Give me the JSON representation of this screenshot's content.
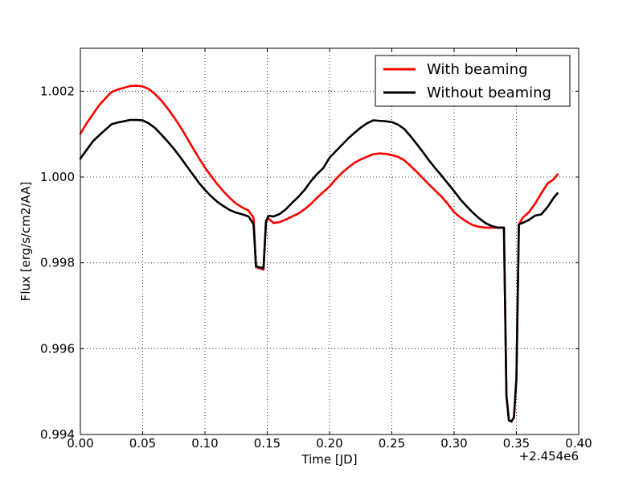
{
  "chart_data": {
    "type": "line",
    "xlabel": "Time [JD]",
    "ylabel": "Flux [erg/s/cm2/AA]",
    "x_offset_label": "+2.454e6",
    "xlim": [
      0.0,
      0.4
    ],
    "ylim": [
      0.994,
      1.003
    ],
    "xticks": [
      0.0,
      0.05,
      0.1,
      0.15,
      0.2,
      0.25,
      0.3,
      0.35,
      0.4
    ],
    "xtick_labels": [
      "0.00",
      "0.05",
      "0.10",
      "0.15",
      "0.20",
      "0.25",
      "0.30",
      "0.35",
      "0.40"
    ],
    "yticks": [
      0.994,
      0.996,
      0.998,
      1.0,
      1.002
    ],
    "ytick_labels": [
      "0.994",
      "0.996",
      "0.998",
      "1.000",
      "1.002"
    ],
    "grid": true,
    "legend_position": "top-right",
    "series": [
      {
        "name": "With beaming",
        "color": "#ff0000",
        "x": [
          0.0,
          0.005,
          0.01,
          0.015,
          0.02,
          0.025,
          0.03,
          0.035,
          0.04,
          0.045,
          0.05,
          0.055,
          0.06,
          0.065,
          0.07,
          0.075,
          0.08,
          0.085,
          0.09,
          0.095,
          0.1,
          0.105,
          0.11,
          0.115,
          0.12,
          0.125,
          0.13,
          0.135,
          0.139,
          0.141,
          0.143,
          0.147,
          0.149,
          0.151,
          0.155,
          0.16,
          0.165,
          0.17,
          0.175,
          0.18,
          0.185,
          0.19,
          0.195,
          0.2,
          0.205,
          0.21,
          0.215,
          0.22,
          0.225,
          0.23,
          0.235,
          0.24,
          0.245,
          0.25,
          0.255,
          0.26,
          0.265,
          0.27,
          0.275,
          0.28,
          0.285,
          0.29,
          0.295,
          0.3,
          0.305,
          0.31,
          0.315,
          0.32,
          0.325,
          0.33,
          0.335,
          0.34,
          0.342,
          0.344,
          0.346,
          0.348,
          0.35,
          0.352,
          0.355,
          0.36,
          0.365,
          0.37,
          0.375,
          0.38,
          0.383
        ],
        "y": [
          1.00101,
          1.00125,
          1.00146,
          1.00167,
          1.00183,
          1.00198,
          1.00204,
          1.00208,
          1.00212,
          1.00213,
          1.00211,
          1.00205,
          1.00193,
          1.00178,
          1.0016,
          1.0014,
          1.00118,
          1.00094,
          1.00069,
          1.00045,
          1.00022,
          1.00002,
          0.99983,
          0.99966,
          0.99951,
          0.99938,
          0.99929,
          0.99922,
          0.99905,
          0.9979,
          0.99788,
          0.99784,
          0.99897,
          0.99903,
          0.99893,
          0.99895,
          0.99901,
          0.99908,
          0.99915,
          0.99925,
          0.99937,
          0.99952,
          0.99965,
          0.99978,
          0.99995,
          1.0001,
          1.00022,
          1.00033,
          1.00041,
          1.00047,
          1.00053,
          1.00055,
          1.00054,
          1.00051,
          1.00047,
          1.00039,
          1.00026,
          1.00012,
          0.99997,
          0.99982,
          0.99968,
          0.99954,
          0.99937,
          0.99918,
          0.99906,
          0.99896,
          0.99888,
          0.99884,
          0.99882,
          0.99882,
          0.99882,
          0.99882,
          0.9949,
          0.99433,
          0.9943,
          0.9944,
          0.9953,
          0.9989,
          0.99905,
          0.99918,
          0.99938,
          0.99962,
          0.99985,
          0.99995,
          1.00006
        ]
      },
      {
        "name": "Without beaming",
        "color": "#000000",
        "x": [
          0.0,
          0.005,
          0.01,
          0.015,
          0.02,
          0.025,
          0.03,
          0.035,
          0.04,
          0.045,
          0.05,
          0.055,
          0.06,
          0.065,
          0.07,
          0.075,
          0.08,
          0.085,
          0.09,
          0.095,
          0.1,
          0.105,
          0.11,
          0.115,
          0.12,
          0.125,
          0.13,
          0.135,
          0.139,
          0.141,
          0.143,
          0.147,
          0.149,
          0.151,
          0.155,
          0.16,
          0.165,
          0.17,
          0.175,
          0.18,
          0.185,
          0.19,
          0.195,
          0.2,
          0.205,
          0.21,
          0.215,
          0.22,
          0.225,
          0.23,
          0.235,
          0.24,
          0.245,
          0.25,
          0.255,
          0.26,
          0.265,
          0.27,
          0.275,
          0.28,
          0.285,
          0.29,
          0.295,
          0.3,
          0.305,
          0.31,
          0.315,
          0.32,
          0.325,
          0.33,
          0.335,
          0.34,
          0.342,
          0.344,
          0.346,
          0.348,
          0.35,
          0.352,
          0.355,
          0.36,
          0.365,
          0.37,
          0.375,
          0.38,
          0.383
        ],
        "y": [
          1.00043,
          1.00063,
          1.00083,
          1.00097,
          1.0011,
          1.00123,
          1.00127,
          1.0013,
          1.00133,
          1.00133,
          1.00132,
          1.00125,
          1.00114,
          1.00099,
          1.00083,
          1.00066,
          1.00047,
          1.00027,
          1.00007,
          0.99987,
          0.9997,
          0.99955,
          0.99942,
          0.99932,
          0.99923,
          0.99917,
          0.99913,
          0.99908,
          0.9989,
          0.99792,
          0.9979,
          0.99788,
          0.99897,
          0.9991,
          0.99908,
          0.99914,
          0.99925,
          0.9994,
          0.99954,
          0.9997,
          0.9999,
          1.00007,
          1.00021,
          1.00045,
          1.0006,
          1.00075,
          1.0009,
          1.00103,
          1.00115,
          1.00125,
          1.00132,
          1.00131,
          1.0013,
          1.00128,
          1.00122,
          1.00112,
          1.00095,
          1.00077,
          1.00058,
          1.00038,
          1.0002,
          1.00003,
          0.99985,
          0.99967,
          0.99948,
          0.99932,
          0.99917,
          0.99904,
          0.99893,
          0.99886,
          0.99882,
          0.99882,
          0.9949,
          0.99433,
          0.9943,
          0.9944,
          0.9953,
          0.9989,
          0.99893,
          0.999,
          0.9991,
          0.99913,
          0.9993,
          0.99952,
          0.99962
        ]
      }
    ]
  }
}
